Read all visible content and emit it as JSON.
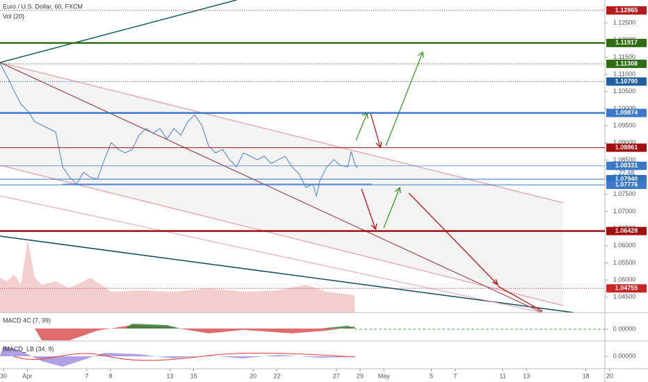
{
  "chart_data": {
    "type": "line",
    "title": "Euro / U.S. Dollar, 60, FXCM",
    "subtitle": "Vol (20)",
    "color": "#4a7fd4",
    "x": [
      -0.3,
      0.29,
      0.87,
      1.46,
      2.04,
      2.63,
      3.21,
      3.8,
      4.38,
      4.97,
      5.55,
      6.14,
      6.72,
      7.31,
      7.89,
      8.48,
      9.06,
      9.65,
      10.23,
      10.82,
      11.4,
      11.99,
      12.57,
      13.16,
      13.74,
      14.33,
      14.91,
      15.5,
      16.08,
      16.67,
      17.25,
      17.84,
      18.42,
      19.01,
      19.59,
      20.18,
      20.76,
      21.35,
      21.93,
      22.52,
      23.11,
      23.69,
      24.28,
      24.86,
      25.45,
      26.03,
      26.32,
      26.62,
      27.2,
      27.79,
      28.37,
      28.96,
      29.25,
      29.54,
      29.78
    ],
    "values": [
      1.1134,
      1.1094,
      1.1053,
      1.1013,
      1.0993,
      1.0962,
      1.0952,
      1.0942,
      1.0932,
      1.083,
      1.08,
      1.078,
      1.0814,
      1.08,
      1.0794,
      1.0851,
      1.0901,
      1.0881,
      1.0871,
      1.0881,
      1.0922,
      1.0942,
      1.0928,
      1.0942,
      1.0911,
      1.0942,
      1.0922,
      1.0962,
      1.0982,
      1.0952,
      1.0891,
      1.0871,
      1.0881,
      1.0851,
      1.083,
      1.0871,
      1.0861,
      1.0851,
      1.0861,
      1.084,
      1.0851,
      1.0861,
      1.083,
      1.081,
      1.077,
      1.078,
      1.0745,
      1.079,
      1.083,
      1.0851,
      1.0834,
      1.083,
      1.0875,
      1.084,
      1.0826
    ],
    "xlim": [
      -0.3,
      50.6
    ],
    "xticks": [
      {
        "value": 0,
        "label": "30"
      },
      {
        "value": 2,
        "label": "Apr"
      },
      7,
      {
        "value": 9,
        "label": "8"
      },
      {
        "value": 14,
        "label": "13"
      },
      {
        "value": 16,
        "label": "15"
      },
      {
        "value": 21,
        "label": "20"
      },
      {
        "value": 23,
        "label": "22"
      },
      {
        "value": 28,
        "label": "27"
      },
      {
        "value": 30,
        "label": "29"
      },
      {
        "value": 32,
        "label": "May"
      },
      {
        "value": 36,
        "label": "5"
      },
      {
        "value": 38,
        "label": "7"
      },
      {
        "value": 42,
        "label": "11"
      },
      {
        "value": 44,
        "label": "13"
      },
      {
        "value": 49,
        "label": "18"
      },
      {
        "value": 51,
        "label": "20"
      }
    ],
    "ylim": [
      1.0405,
      1.1317
    ],
    "yticks": [
      {
        "value": 1.045,
        "label": "1.04500"
      },
      {
        "value": 1.05,
        "label": "1.05000"
      },
      {
        "value": 1.055,
        "label": "1.05500"
      },
      {
        "value": 1.06,
        "label": "1.06000"
      },
      {
        "value": 1.065,
        "label": "1.06500"
      },
      {
        "value": 1.07,
        "label": "1.07000"
      },
      {
        "value": 1.075,
        "label": "1.07500"
      },
      {
        "value": 1.08,
        "label": "1.08000"
      },
      {
        "value": 1.085,
        "label": "1.08500"
      },
      {
        "value": 1.09,
        "label": "1.09000"
      },
      {
        "value": 1.095,
        "label": "1.09500"
      },
      {
        "value": 1.1,
        "label": "1.10000"
      },
      {
        "value": 1.105,
        "label": "1.10500"
      },
      {
        "value": 1.11,
        "label": "1.11000"
      },
      {
        "value": 1.115,
        "label": "1.11500"
      },
      {
        "value": 1.12,
        "label": "1.12000"
      },
      {
        "value": 1.125,
        "label": "1.12500"
      }
    ],
    "levels": [
      {
        "price": 1.12865,
        "color": "#b71c1c",
        "style": "dotted"
      },
      {
        "price": 1.11917,
        "color": "#2e6b12",
        "style": "thick"
      },
      {
        "price": 1.11308,
        "color": "#2e6b12",
        "style": "dotted"
      },
      {
        "price": {
          "value": 1.1079,
          "label": "1.10790"
        },
        "color": "#2060a0",
        "style": "dotted"
      },
      {
        "price": 1.09874,
        "color": "#3b78c8",
        "style": "thick"
      },
      {
        "price": 1.08861,
        "color": "#a01010",
        "style": "solid"
      },
      {
        "price": 1.08331,
        "color": "#3b78c8",
        "style": "thin"
      },
      {
        "price": {
          "value": 1.0794,
          "label": "1.07940"
        },
        "color": "#2f6fc0",
        "style": "solid"
      },
      {
        "price": 1.07776,
        "color": "#3b78c8",
        "style": "solid"
      },
      {
        "price": 1.06428,
        "color": "#a01010",
        "style": "thick"
      },
      {
        "price": 1.04755,
        "color": "#c62828",
        "style": "dotted"
      }
    ],
    "countdown": "27:48",
    "panes": [
      {
        "title": "MACD 4C (7, 99)",
        "tick": {
          "value": 0,
          "label": "0.00000"
        }
      },
      {
        "title": "IMACD_LB (34, 9)",
        "tick": {
          "value": 0,
          "label": "0.00000"
        }
      }
    ]
  }
}
